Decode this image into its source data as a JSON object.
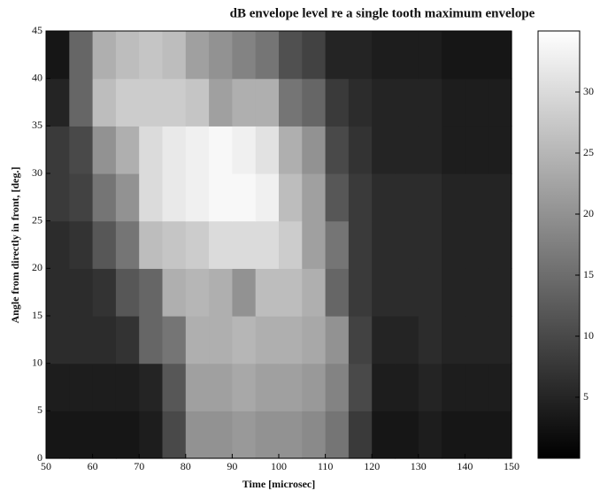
{
  "chart_data": {
    "type": "heatmap",
    "title": "dB envelope level re a single tooth maximum envelope",
    "x_label": "Time [microsec]",
    "y_label": "Angle from directly in front, [deg.]",
    "x": [
      52.5,
      57.5,
      62.5,
      67.5,
      72.5,
      77.5,
      82.5,
      87.5,
      92.5,
      97.5,
      102.5,
      107.5,
      112.5,
      117.5,
      122.5,
      127.5,
      132.5,
      137.5,
      142.5,
      147.5
    ],
    "y": [
      2.5,
      7.5,
      12.5,
      17.5,
      22.5,
      27.5,
      32.5,
      37.5,
      42.5
    ],
    "z": [
      [
        3,
        3,
        3,
        3,
        4,
        10,
        20,
        20,
        21,
        20,
        20,
        19,
        16,
        8,
        3,
        3,
        4,
        3,
        3,
        3
      ],
      [
        4,
        4,
        4,
        4,
        5,
        12,
        22,
        22,
        23,
        22,
        22,
        21,
        18,
        10,
        4,
        4,
        5,
        4,
        4,
        4
      ],
      [
        6,
        6,
        6,
        7,
        14,
        16,
        24,
        24,
        25,
        24,
        24,
        23,
        20,
        9,
        5,
        5,
        6,
        5,
        5,
        5
      ],
      [
        6,
        6,
        7,
        12,
        14,
        24,
        25,
        24,
        20,
        26,
        26,
        24,
        14,
        8,
        6,
        6,
        6,
        5,
        5,
        5
      ],
      [
        6,
        7,
        12,
        16,
        26,
        27,
        28,
        30,
        30,
        30,
        28,
        22,
        16,
        8,
        6,
        6,
        6,
        5,
        5,
        5
      ],
      [
        8,
        9,
        16,
        20,
        30,
        32,
        33,
        34,
        34,
        33,
        26,
        22,
        12,
        8,
        6,
        6,
        6,
        5,
        5,
        5
      ],
      [
        8,
        10,
        20,
        24,
        30,
        32,
        33,
        34,
        33,
        31,
        24,
        20,
        10,
        7,
        5,
        5,
        5,
        4,
        4,
        4
      ],
      [
        5,
        14,
        26,
        28,
        28,
        28,
        27,
        22,
        24,
        24,
        16,
        14,
        8,
        6,
        5,
        5,
        5,
        4,
        4,
        4
      ],
      [
        3,
        14,
        24,
        26,
        27,
        26,
        22,
        20,
        18,
        16,
        11,
        9,
        5,
        5,
        4,
        4,
        4,
        3,
        3,
        3
      ]
    ],
    "xlim": [
      50,
      150
    ],
    "ylim": [
      0,
      45
    ],
    "xticks": [
      50,
      60,
      70,
      80,
      90,
      100,
      110,
      120,
      130,
      140,
      150
    ],
    "yticks": [
      0,
      5,
      10,
      15,
      20,
      25,
      30,
      35,
      40,
      45
    ],
    "clim": [
      0,
      35
    ],
    "cticks": [
      5,
      10,
      15,
      20,
      25,
      30
    ],
    "colormap": [
      "#000000",
      "#ffffff"
    ]
  }
}
